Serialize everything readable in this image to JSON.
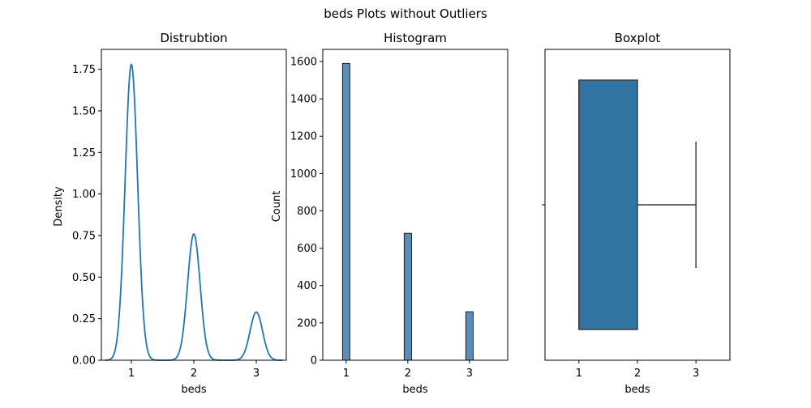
{
  "figure": {
    "suptitle": "beds Plots without Outliers"
  },
  "chart_data": [
    {
      "type": "line",
      "title": "Distrubtion",
      "xlabel": "beds",
      "ylabel": "Density",
      "xlim": [
        0.52,
        3.48
      ],
      "ylim": [
        0,
        1.87
      ],
      "xticks": [
        1,
        2,
        3
      ],
      "yticks": [
        0.0,
        0.25,
        0.5,
        0.75,
        1.0,
        1.25,
        1.5,
        1.75
      ],
      "ytick_labels": [
        "0.00",
        "0.25",
        "0.50",
        "0.75",
        "1.00",
        "1.25",
        "1.50",
        "1.75"
      ],
      "color": "#1f77b4",
      "peaks": [
        {
          "x": 1,
          "y": 1.78,
          "sigma": 0.1
        },
        {
          "x": 2,
          "y": 0.76,
          "sigma": 0.1
        },
        {
          "x": 3,
          "y": 0.29,
          "sigma": 0.1
        }
      ],
      "x_range": [
        0.58,
        3.42
      ]
    },
    {
      "type": "bar",
      "title": "Histogram",
      "xlabel": "beds",
      "ylabel": "Count",
      "categories": [
        "1",
        "2",
        "3"
      ],
      "x": [
        1,
        2,
        3
      ],
      "values": [
        1590,
        680,
        260
      ],
      "bar_width": 0.12,
      "xlim": [
        0.62,
        3.62
      ],
      "ylim": [
        0,
        1665
      ],
      "xticks": [
        1,
        2,
        3
      ],
      "yticks": [
        0,
        200,
        400,
        600,
        800,
        1000,
        1200,
        1400,
        1600
      ],
      "color": "#5b8db8"
    },
    {
      "type": "boxplot",
      "title": "Boxplot",
      "xlabel": "beds",
      "xlim": [
        0.42,
        3.58
      ],
      "xticks": [
        1,
        2,
        3
      ],
      "q1": 1,
      "median": 1,
      "q3": 2,
      "whisker_low": 1,
      "whisker_high": 3,
      "color": "#3274a1"
    }
  ]
}
